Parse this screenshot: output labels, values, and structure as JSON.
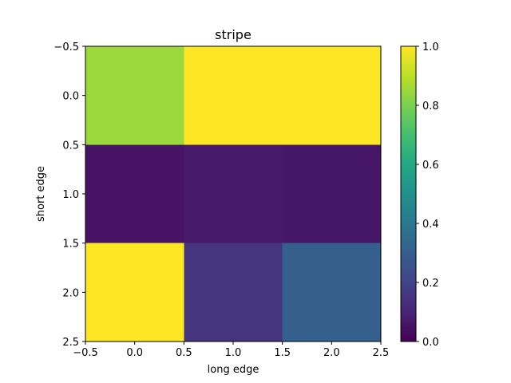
{
  "chart_data": {
    "type": "heatmap",
    "title": "stripe",
    "xlabel": "long edge",
    "ylabel": "short edge",
    "x_ticks": [
      -0.5,
      0.0,
      0.5,
      1.0,
      1.5,
      2.0,
      2.5
    ],
    "x_tick_labels": [
      "−0.5",
      "0.0",
      "0.5",
      "1.0",
      "1.5",
      "2.0",
      "2.5"
    ],
    "y_ticks": [
      -0.5,
      0.0,
      0.5,
      1.0,
      1.5,
      2.0,
      2.5
    ],
    "y_tick_labels": [
      "−0.5",
      "0.0",
      "0.5",
      "1.0",
      "1.5",
      "2.0",
      "2.5"
    ],
    "xlim": [
      -0.5,
      2.5
    ],
    "ylim": [
      -0.5,
      2.5
    ],
    "y_inverted": true,
    "colormap": "viridis",
    "vmin": 0.0,
    "vmax": 1.0,
    "values": [
      [
        0.85,
        1.0,
        1.0
      ],
      [
        0.05,
        0.07,
        0.06
      ],
      [
        1.0,
        0.15,
        0.3
      ]
    ],
    "colorbar": {
      "ticks": [
        0.0,
        0.2,
        0.4,
        0.6,
        0.8,
        1.0
      ],
      "tick_labels": [
        "0.0",
        "0.2",
        "0.4",
        "0.6",
        "0.8",
        "1.0"
      ]
    },
    "grid": false,
    "legend": false
  }
}
